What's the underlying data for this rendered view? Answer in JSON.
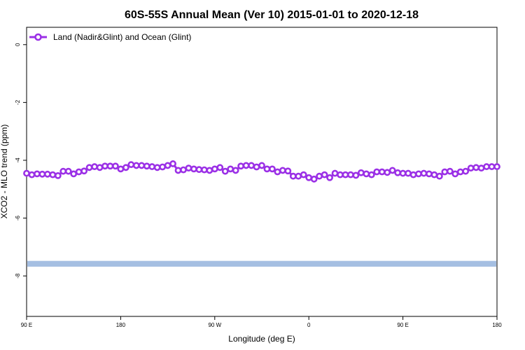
{
  "chart_data": {
    "type": "line",
    "title": "60S-55S Annual Mean (Ver 10)   2015-01-01 to 2020-12-18",
    "xlabel": "Longitude (deg E)",
    "ylabel": "XCO2 - MLO trend (ppm)",
    "xlim": [
      90,
      450
    ],
    "ylim": [
      -9.4,
      0.6
    ],
    "x_ticks": [
      {
        "value": 90,
        "label": "90 E"
      },
      {
        "value": 180,
        "label": "180"
      },
      {
        "value": 270,
        "label": "90 W"
      },
      {
        "value": 360,
        "label": "0"
      },
      {
        "value": 450,
        "label": "90 E"
      },
      {
        "value": 540,
        "label": "180"
      }
    ],
    "y_ticks": [
      {
        "value": 0,
        "label": "0"
      },
      {
        "value": -2,
        "label": "-2"
      },
      {
        "value": -4,
        "label": "-4"
      },
      {
        "value": -6,
        "label": "-6"
      },
      {
        "value": -8,
        "label": "-8"
      }
    ],
    "x_display_max": 540,
    "grid": false,
    "legend": {
      "position": "top-left"
    },
    "series": [
      {
        "name": "Land (Nadir&Glint) and Ocean (Glint)",
        "color": "#9b30e6",
        "marker": "circle-open",
        "y": [
          -4.45,
          -4.5,
          -4.47,
          -4.48,
          -4.48,
          -4.5,
          -4.53,
          -4.38,
          -4.38,
          -4.47,
          -4.4,
          -4.37,
          -4.25,
          -4.22,
          -4.25,
          -4.2,
          -4.2,
          -4.2,
          -4.3,
          -4.25,
          -4.15,
          -4.18,
          -4.18,
          -4.2,
          -4.22,
          -4.25,
          -4.23,
          -4.18,
          -4.12,
          -4.35,
          -4.33,
          -4.27,
          -4.3,
          -4.32,
          -4.33,
          -4.35,
          -4.3,
          -4.25,
          -4.38,
          -4.3,
          -4.35,
          -4.2,
          -4.18,
          -4.18,
          -4.23,
          -4.18,
          -4.3,
          -4.3,
          -4.4,
          -4.35,
          -4.37,
          -4.55,
          -4.55,
          -4.5,
          -4.6,
          -4.65,
          -4.55,
          -4.5,
          -4.6,
          -4.45,
          -4.5,
          -4.5,
          -4.5,
          -4.52,
          -4.43,
          -4.47,
          -4.5,
          -4.4,
          -4.4,
          -4.42,
          -4.35,
          -4.43,
          -4.45,
          -4.45,
          -4.5,
          -4.47,
          -4.45,
          -4.47,
          -4.5,
          -4.55,
          -4.4,
          -4.38,
          -4.47,
          -4.4,
          -4.38,
          -4.27,
          -4.25,
          -4.27,
          -4.22,
          -4.22,
          -4.22
        ],
        "x_start": 90,
        "x_end": 540
      }
    ],
    "band": {
      "name": "",
      "color": "#a5bfe2",
      "y_low": -7.68,
      "y_high": -7.48
    }
  }
}
